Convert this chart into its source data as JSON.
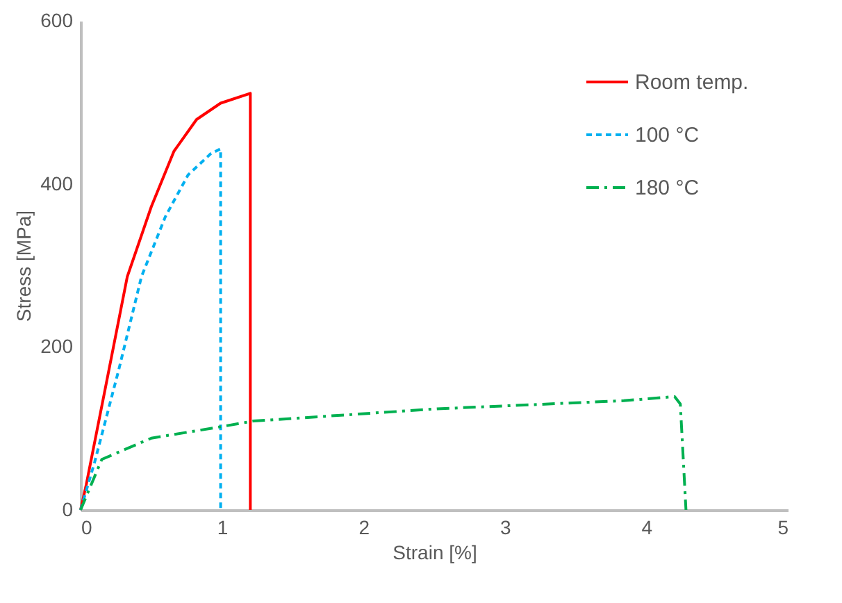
{
  "chart_data": {
    "type": "line",
    "xlabel": "Strain [%]",
    "ylabel": "Stress [MPa]",
    "xlim": [
      0,
      5
    ],
    "xticks": [
      0,
      1,
      2,
      3,
      4,
      5
    ],
    "ylim": [
      0,
      600
    ],
    "yticks": [
      0,
      200,
      400,
      600
    ],
    "grid": false,
    "legend": "top right",
    "marker": "none",
    "series": [
      {
        "name": "Room temp.",
        "color": "#ff0000",
        "line_style": "solid",
        "x": [
          0,
          0.04,
          0.17,
          0.33,
          0.5,
          0.66,
          0.82,
          0.99,
          1.2,
          1.2
        ],
        "values": [
          0,
          31,
          145,
          286,
          372,
          440,
          479,
          499,
          511,
          0
        ]
      },
      {
        "name": "100 °C",
        "color": "#00b0f0",
        "line_style": "dashed",
        "x": [
          0,
          0.1,
          0.27,
          0.43,
          0.6,
          0.76,
          0.92,
          0.99,
          0.99
        ],
        "values": [
          0,
          59,
          172,
          286,
          360,
          411,
          437,
          443,
          0
        ]
      },
      {
        "name": "180 °C",
        "color": "#00b050",
        "line_style": "dashdot",
        "x": [
          0,
          0.15,
          0.5,
          0.99,
          1.22,
          2.52,
          3.84,
          4.2,
          4.24,
          4.28
        ],
        "values": [
          0,
          62,
          88,
          102,
          109,
          124,
          134,
          139,
          130,
          0
        ]
      }
    ]
  }
}
